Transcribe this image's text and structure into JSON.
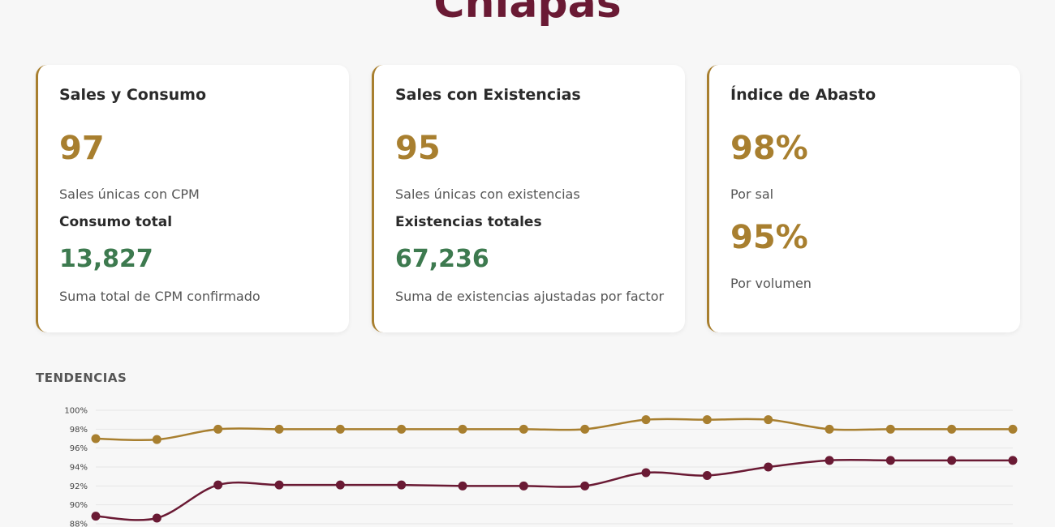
{
  "header": {
    "title": "Chiapas"
  },
  "cards": [
    {
      "title": "Sales y Consumo",
      "value": "97",
      "value_caption": "Sales únicas con CPM",
      "sub_title": "Consumo total",
      "sub_value": "13,827",
      "sub_caption": "Suma total de CPM confirmado"
    },
    {
      "title": "Sales con Existencias",
      "value": "95",
      "value_caption": "Sales únicas con existencias",
      "sub_title": "Existencias totales",
      "sub_value": "67,236",
      "sub_caption": "Suma de existencias ajustadas por factor"
    },
    {
      "title": "Índice de Abasto",
      "value": "98%",
      "value_caption": "Por sal",
      "value2": "95%",
      "value2_caption": "Por volumen"
    }
  ],
  "section": {
    "label": "TENDENCIAS"
  },
  "colors": {
    "gold": "#a87f2f",
    "maroon": "#6a1a34",
    "green": "#3d7a4f"
  },
  "chart_data": {
    "type": "line",
    "y_tick_labels": [
      "100%",
      "98%",
      "96%",
      "94%",
      "92%",
      "90%",
      "88%"
    ],
    "ylim": [
      88,
      100
    ],
    "grid": true,
    "series": [
      {
        "color": "#a87f2f",
        "values": [
          97.0,
          96.9,
          98.0,
          98.0,
          98.0,
          98.0,
          98.0,
          98.0,
          98.0,
          99.0,
          99.0,
          99.0,
          98.0,
          98.0,
          98.0,
          98.0
        ]
      },
      {
        "color": "#6a1a34",
        "values": [
          88.8,
          88.6,
          92.1,
          92.1,
          92.1,
          92.1,
          92.0,
          92.0,
          92.0,
          93.4,
          93.1,
          94.0,
          94.7,
          94.7,
          94.7,
          94.7
        ]
      }
    ]
  }
}
